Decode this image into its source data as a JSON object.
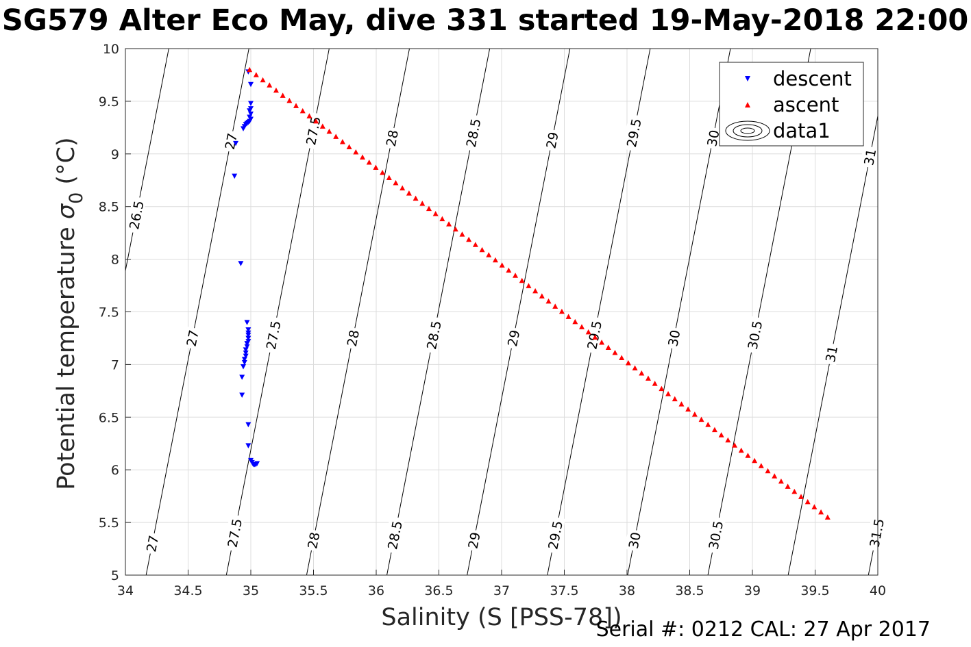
{
  "chart_data": {
    "type": "scatter",
    "title": "SG579 Alter Eco May, dive 331 started 19-May-2018 22:00",
    "xlabel": "Salinity (S [PSS-78])",
    "ylabel_main": "Potential temperature ",
    "ylabel_sym": "σ",
    "ylabel_sub": "0",
    "ylabel_unit": " (°C)",
    "footer": "Serial #: 0212  CAL: 27 Apr 2017",
    "xlim": [
      34,
      40
    ],
    "ylim": [
      5,
      10
    ],
    "xticks": [
      34,
      34.5,
      35,
      35.5,
      36,
      36.5,
      37,
      37.5,
      38,
      38.5,
      39,
      39.5,
      40
    ],
    "xtick_labels": [
      "34",
      "34.5",
      "35",
      "35.5",
      "36",
      "36.5",
      "37",
      "37.5",
      "38",
      "38.5",
      "39",
      "39.5",
      "40"
    ],
    "yticks": [
      5,
      5.5,
      6,
      6.5,
      7,
      7.5,
      8,
      8.5,
      9,
      9.5,
      10
    ],
    "ytick_labels": [
      "5",
      "5.5",
      "6",
      "6.5",
      "7",
      "7.5",
      "8",
      "8.5",
      "9",
      "9.5",
      "10"
    ],
    "grid": true,
    "legend_position": "top-right",
    "series": [
      {
        "name": "descent",
        "marker": "triangle-down",
        "color": "#0000ff",
        "points": [
          [
            34.98,
            9.78
          ],
          [
            35.0,
            9.66
          ],
          [
            35.0,
            9.48
          ],
          [
            35.0,
            9.43
          ],
          [
            34.99,
            9.41
          ],
          [
            35.0,
            9.38
          ],
          [
            34.99,
            9.35
          ],
          [
            35.0,
            9.33
          ],
          [
            34.99,
            9.31
          ],
          [
            34.98,
            9.3
          ],
          [
            34.97,
            9.29
          ],
          [
            34.96,
            9.28
          ],
          [
            34.95,
            9.26
          ],
          [
            34.94,
            9.24
          ],
          [
            34.88,
            9.1
          ],
          [
            34.87,
            8.79
          ],
          [
            34.92,
            7.96
          ],
          [
            34.97,
            7.4
          ],
          [
            34.98,
            7.33
          ],
          [
            34.98,
            7.3
          ],
          [
            34.98,
            7.28
          ],
          [
            34.98,
            7.25
          ],
          [
            34.98,
            7.22
          ],
          [
            34.97,
            7.2
          ],
          [
            34.97,
            7.17
          ],
          [
            34.96,
            7.14
          ],
          [
            34.96,
            7.11
          ],
          [
            34.96,
            7.08
          ],
          [
            34.95,
            7.05
          ],
          [
            34.95,
            7.02
          ],
          [
            34.94,
            6.98
          ],
          [
            34.93,
            6.88
          ],
          [
            34.93,
            6.71
          ],
          [
            34.98,
            6.43
          ],
          [
            34.98,
            6.23
          ],
          [
            35.0,
            6.09
          ],
          [
            35.01,
            6.07
          ],
          [
            35.02,
            6.05
          ],
          [
            35.03,
            6.05
          ],
          [
            35.04,
            6.05
          ],
          [
            35.05,
            6.06
          ]
        ]
      },
      {
        "name": "ascent",
        "marker": "triangle-up",
        "color": "#ff0000",
        "line": {
          "x_start": 34.99,
          "y_start": 9.8,
          "x_end": 39.6,
          "y_end": 5.55,
          "count": 88
        }
      }
    ],
    "contours": {
      "name": "data1",
      "color": "#000000",
      "levels": [
        26.5,
        27,
        27.5,
        28,
        28.5,
        29,
        29.5,
        30,
        30.5,
        31,
        31.5
      ],
      "salinity_at_5C": [
        33.526,
        34.165,
        34.805,
        35.445,
        36.085,
        36.725,
        37.365,
        38.005,
        38.645,
        39.285,
        39.925
      ],
      "salinity_per_degC": 0.164,
      "label_marks": [
        {
          "level": 26.5,
          "text": "26.5",
          "at_t": 8.42
        },
        {
          "level": 27,
          "text": "27",
          "at_t": 9.12
        },
        {
          "level": 27,
          "text": "27",
          "at_t": 7.25
        },
        {
          "level": 27,
          "text": "27",
          "at_t": 5.3
        },
        {
          "level": 27.5,
          "text": "27.5",
          "at_t": 9.22
        },
        {
          "level": 27.5,
          "text": "27.5",
          "at_t": 7.28
        },
        {
          "level": 27.5,
          "text": "27.5",
          "at_t": 5.4
        },
        {
          "level": 28,
          "text": "28",
          "at_t": 9.15
        },
        {
          "level": 28,
          "text": "28",
          "at_t": 7.25
        },
        {
          "level": 28,
          "text": "28",
          "at_t": 5.33
        },
        {
          "level": 28.5,
          "text": "28.5",
          "at_t": 9.2
        },
        {
          "level": 28.5,
          "text": "28.5",
          "at_t": 7.28
        },
        {
          "level": 28.5,
          "text": "28.5",
          "at_t": 5.38
        },
        {
          "level": 29,
          "text": "29",
          "at_t": 9.13
        },
        {
          "level": 29,
          "text": "29",
          "at_t": 7.25
        },
        {
          "level": 29,
          "text": "29",
          "at_t": 5.33
        },
        {
          "level": 29.5,
          "text": "29.5",
          "at_t": 9.2
        },
        {
          "level": 29.5,
          "text": "29.5",
          "at_t": 7.28
        },
        {
          "level": 29.5,
          "text": "29.5",
          "at_t": 5.38
        },
        {
          "level": 30,
          "text": "30",
          "at_t": 9.15
        },
        {
          "level": 30,
          "text": "30",
          "at_t": 7.25
        },
        {
          "level": 30,
          "text": "30",
          "at_t": 5.33
        },
        {
          "level": 30.5,
          "text": "30.5",
          "at_t": 7.28
        },
        {
          "level": 30.5,
          "text": "30.5",
          "at_t": 5.38
        },
        {
          "level": 31,
          "text": "31",
          "at_t": 8.97
        },
        {
          "level": 31,
          "text": "31",
          "at_t": 7.1
        },
        {
          "level": 31.5,
          "text": "31.5",
          "at_t": 5.4
        }
      ]
    }
  }
}
